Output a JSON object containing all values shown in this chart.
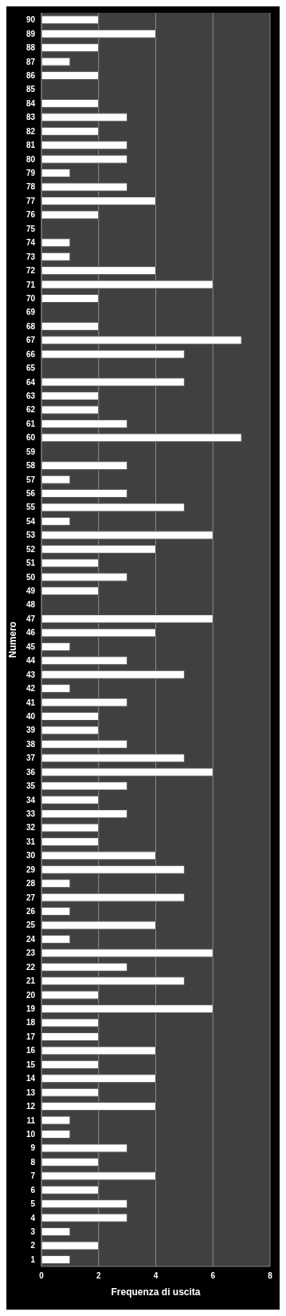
{
  "chart_data": {
    "type": "bar",
    "orientation": "horizontal",
    "xlabel": "Frequenza di uscita",
    "ylabel": "Numero",
    "categories": [
      "90",
      "89",
      "88",
      "87",
      "86",
      "85",
      "84",
      "83",
      "82",
      "81",
      "80",
      "79",
      "78",
      "77",
      "76",
      "75",
      "74",
      "73",
      "72",
      "71",
      "70",
      "69",
      "68",
      "67",
      "66",
      "65",
      "64",
      "63",
      "62",
      "61",
      "60",
      "59",
      "58",
      "57",
      "56",
      "55",
      "54",
      "53",
      "52",
      "51",
      "50",
      "49",
      "48",
      "47",
      "46",
      "45",
      "44",
      "43",
      "42",
      "41",
      "40",
      "39",
      "38",
      "37",
      "36",
      "35",
      "34",
      "33",
      "32",
      "31",
      "30",
      "29",
      "28",
      "27",
      "26",
      "25",
      "24",
      "23",
      "22",
      "21",
      "20",
      "19",
      "18",
      "17",
      "16",
      "15",
      "14",
      "13",
      "12",
      "11",
      "10",
      "9",
      "8",
      "7",
      "6",
      "5",
      "4",
      "3",
      "2",
      "1"
    ],
    "values": [
      2,
      4,
      2,
      1,
      2,
      0,
      2,
      3,
      2,
      3,
      3,
      1,
      3,
      4,
      2,
      0,
      1,
      1,
      4,
      6,
      2,
      0,
      2,
      7,
      5,
      0,
      5,
      2,
      2,
      3,
      7,
      0,
      3,
      1,
      3,
      5,
      1,
      6,
      4,
      2,
      3,
      2,
      0,
      6,
      4,
      1,
      3,
      5,
      1,
      3,
      2,
      2,
      3,
      5,
      6,
      3,
      2,
      3,
      2,
      2,
      4,
      5,
      1,
      5,
      1,
      4,
      1,
      6,
      3,
      5,
      2,
      6,
      2,
      2,
      4,
      2,
      4,
      2,
      4,
      1,
      1,
      3,
      2,
      4,
      2,
      3,
      3,
      1,
      2,
      1
    ],
    "color": "#ffffff",
    "xlim": [
      0,
      8
    ],
    "xticks": [
      0,
      2,
      4,
      6,
      8
    ],
    "grid": "x"
  }
}
